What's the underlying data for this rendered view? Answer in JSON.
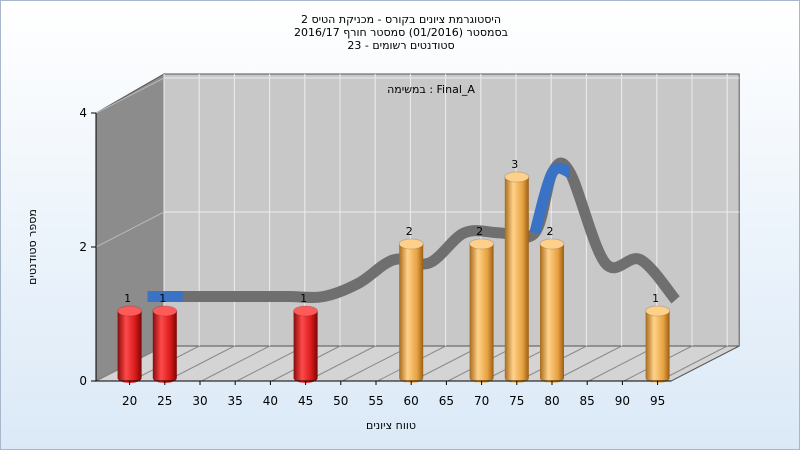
{
  "title_lines": [
    "היסטוגרמת ציונים בקורס - מכניקת הטיס 2",
    "בסמסטר  (01/2016)  סמסטר חורף 2016/17",
    "סטודנטים רשומים - 23"
  ],
  "task_label": "במשימה : Final_A",
  "colors": {
    "fail_bar": "#dd1f1f",
    "pass_bar": "#e9a648",
    "curve_dark": "#6f6f6f",
    "curve_blue": "#3a72c6",
    "wall_gray": "#c8c8c8",
    "side_wall": "#8c8c8c"
  },
  "chart_data": {
    "type": "bar",
    "title": "היסטוגרמת ציונים בקורס - מכניקת הטיס 2",
    "xlabel": "טווח ציונים",
    "ylabel": "מספר סטודנטים",
    "categories": [
      "20",
      "25",
      "30",
      "35",
      "40",
      "45",
      "50",
      "55",
      "60",
      "65",
      "70",
      "75",
      "80",
      "85",
      "90",
      "95"
    ],
    "values": [
      1,
      1,
      0,
      0,
      0,
      1,
      0,
      0,
      2,
      0,
      2,
      3,
      2,
      0,
      0,
      1
    ],
    "bar_colors": [
      "fail",
      "fail",
      "",
      "",
      "",
      "fail",
      "",
      "",
      "pass",
      "",
      "pass",
      "pass",
      "pass",
      "",
      "",
      "pass"
    ],
    "yticks": [
      0,
      2,
      4
    ],
    "ylim": [
      0,
      4
    ],
    "curve": {
      "x": [
        22.5,
        27.5,
        32.5,
        37.5,
        42.5,
        47.5,
        52.5,
        57.5,
        62.5,
        67.5,
        72.5,
        77.5,
        80,
        82.5,
        87.5,
        92.5,
        97.5
      ],
      "y": [
        1,
        1,
        1,
        1,
        1,
        1,
        1.2,
        1.55,
        1.5,
        1.95,
        1.95,
        1.95,
        2.85,
        2.85,
        1.5,
        1.55,
        0.95
      ],
      "blue_segments": [
        [
          22.5,
          27.5
        ],
        [
          77.5,
          85
        ]
      ]
    }
  }
}
